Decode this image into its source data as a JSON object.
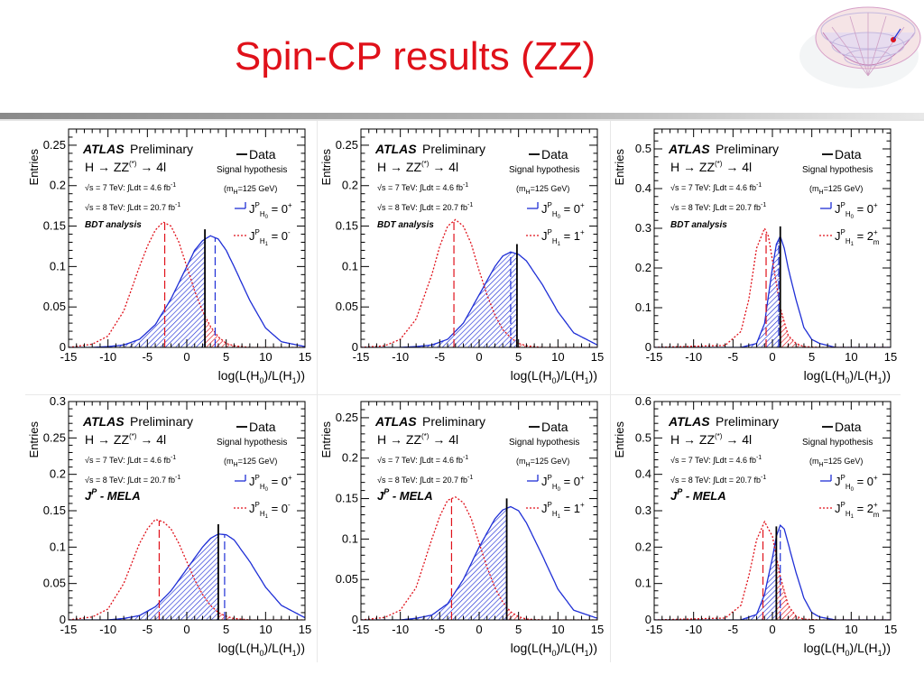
{
  "slide": {
    "title": "Spin-CP results (ZZ)"
  },
  "logo": {
    "name": "mexican-hat-potential-icon"
  },
  "common": {
    "ylabel": "Entries",
    "xlabel_main": "log(L(H",
    "xlabel_sub0": "0",
    "xlabel_mid": ")/L(H",
    "xlabel_sub1": "1",
    "xlabel_end": "))",
    "atlas": "ATLAS",
    "preliminary": "Preliminary",
    "process": "H → ZZ",
    "process_sup": "(*)",
    "process_end": " → 4l",
    "lumi_7": "√s = 7 TeV: ∫Ldt = 4.6 fb",
    "lumi_8": "√s = 8 TeV: ∫Ldt = 20.7 fb",
    "lumi_sup": "-1",
    "data_label": "Data",
    "signal_hypothesis": "Signal hypothesis",
    "mass_pre": "(m",
    "mass_sub": "H",
    "mass_post": "=125 GeV)",
    "hyp_J": "J",
    "hyp_sup": "P",
    "hyp_H0": "H",
    "hyp_H0sub": "0",
    "hyp_H1sub": "1",
    "hyp_eq0": " = 0",
    "hyp_plus": "+"
  },
  "chart_data": [
    {
      "type": "line",
      "ylabel": "Entries",
      "analysis": "BDT analysis",
      "alt_label": " = 0",
      "alt_sup": "-",
      "alt_sub": "",
      "xlim": [
        -15,
        15
      ],
      "ylim": [
        0,
        0.27
      ],
      "yticks": [
        "0",
        "0.05",
        "0.1",
        "0.15",
        "0.2",
        "0.25"
      ],
      "xticks": [
        "-15",
        "-10",
        "-5",
        "0",
        "5",
        "10",
        "15"
      ],
      "series": [
        {
          "hypothesis": "J^P(H0) = 0+",
          "color": "#1f2fd6",
          "x": [
            -15,
            -12,
            -10,
            -8,
            -6,
            -4,
            -2,
            0,
            1,
            2,
            3,
            4,
            5,
            6,
            8,
            10,
            12,
            15
          ],
          "y": [
            0,
            0,
            0.001,
            0.003,
            0.01,
            0.028,
            0.06,
            0.1,
            0.12,
            0.132,
            0.138,
            0.134,
            0.12,
            0.1,
            0.058,
            0.024,
            0.007,
            0.001
          ],
          "median": 3.6
        },
        {
          "hypothesis": "J^P(H1) = 0-",
          "color": "#e0111a",
          "x": [
            -15,
            -12,
            -10,
            -8,
            -6,
            -5,
            -4,
            -3,
            -2,
            -1,
            0,
            1,
            2,
            3,
            4,
            5,
            6,
            8,
            10,
            15
          ],
          "y": [
            0,
            0.004,
            0.014,
            0.045,
            0.1,
            0.125,
            0.145,
            0.155,
            0.15,
            0.13,
            0.1,
            0.07,
            0.045,
            0.026,
            0.013,
            0.005,
            0.002,
            0,
            0,
            0
          ],
          "median": -2.8
        }
      ],
      "observed": 2.3
    },
    {
      "type": "line",
      "ylabel": "Entries",
      "analysis": "BDT analysis",
      "alt_label": " = 1",
      "alt_sup": "+",
      "alt_sub": "",
      "xlim": [
        -15,
        15
      ],
      "ylim": [
        0,
        0.27
      ],
      "yticks": [
        "0",
        "0.05",
        "0.1",
        "0.15",
        "0.2",
        "0.25"
      ],
      "xticks": [
        "-15",
        "-10",
        "-5",
        "0",
        "5",
        "10",
        "15"
      ],
      "series": [
        {
          "hypothesis": "J^P(H0) = 0+",
          "color": "#1f2fd6",
          "x": [
            -15,
            -12,
            -10,
            -8,
            -6,
            -4,
            -2,
            0,
            2,
            3,
            4,
            5,
            6,
            8,
            10,
            12,
            15
          ],
          "y": [
            0,
            0,
            0,
            0.001,
            0.003,
            0.01,
            0.03,
            0.065,
            0.1,
            0.113,
            0.118,
            0.115,
            0.107,
            0.078,
            0.044,
            0.018,
            0.003
          ],
          "median": 4.0
        },
        {
          "hypothesis": "J^P(H1) = 1+",
          "color": "#e0111a",
          "x": [
            -15,
            -12,
            -10,
            -8,
            -6,
            -5,
            -4,
            -3,
            -2,
            -1,
            0,
            1,
            2,
            3,
            4,
            5,
            6,
            8,
            10,
            15
          ],
          "y": [
            0,
            0.002,
            0.01,
            0.035,
            0.09,
            0.125,
            0.15,
            0.158,
            0.15,
            0.128,
            0.095,
            0.065,
            0.04,
            0.022,
            0.012,
            0.005,
            0.002,
            0,
            0,
            0
          ],
          "median": -3.2
        }
      ],
      "observed": 4.8
    },
    {
      "type": "line",
      "ylabel": "Entries",
      "analysis": "BDT analysis",
      "alt_label": " = 2",
      "alt_sup": "+",
      "alt_sub": "m",
      "xlim": [
        -15,
        15
      ],
      "ylim": [
        0,
        0.55
      ],
      "yticks": [
        "0",
        "0.1",
        "0.2",
        "0.3",
        "0.4",
        "0.5"
      ],
      "xticks": [
        "-15",
        "-10",
        "-5",
        "0",
        "5",
        "10",
        "15"
      ],
      "series": [
        {
          "hypothesis": "J^P(H0) = 0+",
          "color": "#1f2fd6",
          "x": [
            -15,
            -4,
            -2,
            -1,
            0,
            0.5,
            1,
            1.5,
            2,
            3,
            4,
            5,
            6,
            8,
            10,
            15
          ],
          "y": [
            0,
            0,
            0.01,
            0.06,
            0.2,
            0.26,
            0.28,
            0.25,
            0.2,
            0.12,
            0.05,
            0.02,
            0.01,
            0,
            0,
            0
          ],
          "median": 0.8
        },
        {
          "hypothesis": "J^P(H1) = 2+m",
          "color": "#e0111a",
          "x": [
            -15,
            -6,
            -4,
            -3,
            -2,
            -1,
            -0.5,
            0,
            1,
            2,
            3,
            4,
            6,
            15
          ],
          "y": [
            0,
            0.005,
            0.04,
            0.12,
            0.25,
            0.3,
            0.28,
            0.22,
            0.1,
            0.03,
            0.01,
            0.002,
            0,
            0
          ],
          "median": -0.8
        }
      ],
      "observed": 1.0
    },
    {
      "type": "line",
      "ylabel": "Entries",
      "analysis": "J^P - MELA",
      "alt_label": " = 0",
      "alt_sup": "-",
      "alt_sub": "",
      "xlim": [
        -15,
        15
      ],
      "ylim": [
        0,
        0.3
      ],
      "yticks": [
        "0",
        "0.05",
        "0.1",
        "0.15",
        "0.2",
        "0.25",
        "0.3"
      ],
      "xticks": [
        "-15",
        "-10",
        "-5",
        "0",
        "5",
        "10",
        "15"
      ],
      "series": [
        {
          "hypothesis": "J^P(H0) = 0+",
          "color": "#1f2fd6",
          "x": [
            -15,
            -10,
            -8,
            -6,
            -4,
            -2,
            0,
            2,
            3,
            4,
            5,
            6,
            8,
            10,
            12,
            15
          ],
          "y": [
            0,
            0,
            0.002,
            0.006,
            0.018,
            0.04,
            0.07,
            0.1,
            0.112,
            0.118,
            0.117,
            0.11,
            0.08,
            0.045,
            0.02,
            0.003
          ],
          "median": 4.8
        },
        {
          "hypothesis": "J^P(H1) = 0-",
          "color": "#e0111a",
          "x": [
            -15,
            -12,
            -10,
            -8,
            -6,
            -5,
            -4,
            -3,
            -2,
            -1,
            0,
            1,
            2,
            3,
            4,
            5,
            6,
            8,
            10,
            15
          ],
          "y": [
            0,
            0.004,
            0.015,
            0.05,
            0.105,
            0.125,
            0.138,
            0.135,
            0.125,
            0.105,
            0.08,
            0.055,
            0.035,
            0.02,
            0.01,
            0.005,
            0.002,
            0,
            0,
            0
          ],
          "median": -3.5
        }
      ],
      "observed": 4.0
    },
    {
      "type": "line",
      "ylabel": "Entries",
      "analysis": "J^P - MELA",
      "alt_label": " = 1",
      "alt_sup": "+",
      "alt_sub": "",
      "xlim": [
        -15,
        15
      ],
      "ylim": [
        0,
        0.27
      ],
      "yticks": [
        "0",
        "0.05",
        "0.1",
        "0.15",
        "0.2",
        "0.25"
      ],
      "xticks": [
        "-15",
        "-10",
        "-5",
        "0",
        "5",
        "10",
        "15"
      ],
      "series": [
        {
          "hypothesis": "J^P(H0) = 0+",
          "color": "#1f2fd6",
          "x": [
            -15,
            -10,
            -8,
            -6,
            -4,
            -2,
            0,
            2,
            3,
            4,
            5,
            6,
            8,
            10,
            12,
            15
          ],
          "y": [
            0,
            0,
            0.002,
            0.006,
            0.02,
            0.05,
            0.09,
            0.125,
            0.136,
            0.14,
            0.135,
            0.12,
            0.08,
            0.038,
            0.012,
            0.002
          ],
          "median": 3.5
        },
        {
          "hypothesis": "J^P(H1) = 1+",
          "color": "#e0111a",
          "x": [
            -15,
            -12,
            -10,
            -8,
            -6,
            -5,
            -4,
            -3,
            -2,
            -1,
            0,
            1,
            2,
            3,
            4,
            5,
            6,
            8,
            10,
            15
          ],
          "y": [
            0,
            0.003,
            0.012,
            0.04,
            0.1,
            0.128,
            0.148,
            0.152,
            0.145,
            0.125,
            0.095,
            0.065,
            0.04,
            0.022,
            0.01,
            0.004,
            0.001,
            0,
            0,
            0
          ],
          "median": -3.5
        }
      ],
      "observed": 3.5
    },
    {
      "type": "line",
      "ylabel": "Entries",
      "analysis": "J^P - MELA",
      "alt_label": " = 2",
      "alt_sup": "+",
      "alt_sub": "m",
      "xlim": [
        -15,
        15
      ],
      "ylim": [
        0,
        0.6
      ],
      "yticks": [
        "0",
        "0.1",
        "0.2",
        "0.3",
        "0.4",
        "0.5",
        "0.6"
      ],
      "xticks": [
        "-15",
        "-10",
        "-5",
        "0",
        "5",
        "10",
        "15"
      ],
      "series": [
        {
          "hypothesis": "J^P(H0) = 0+",
          "color": "#1f2fd6",
          "x": [
            -15,
            -4,
            -2,
            -1,
            0,
            0.5,
            1,
            1.5,
            2,
            3,
            4,
            5,
            6,
            8,
            10,
            15
          ],
          "y": [
            0,
            0,
            0.015,
            0.07,
            0.17,
            0.23,
            0.26,
            0.25,
            0.21,
            0.13,
            0.06,
            0.02,
            0.008,
            0,
            0,
            0
          ],
          "median": 1.0
        },
        {
          "hypothesis": "J^P(H1) = 2+m",
          "color": "#e0111a",
          "x": [
            -15,
            -6,
            -4,
            -3,
            -2,
            -1,
            0,
            1,
            2,
            3,
            4,
            6,
            15
          ],
          "y": [
            0,
            0.005,
            0.04,
            0.12,
            0.22,
            0.27,
            0.23,
            0.12,
            0.04,
            0.01,
            0.002,
            0,
            0
          ],
          "median": -1.2
        }
      ],
      "observed": 0.5
    }
  ]
}
